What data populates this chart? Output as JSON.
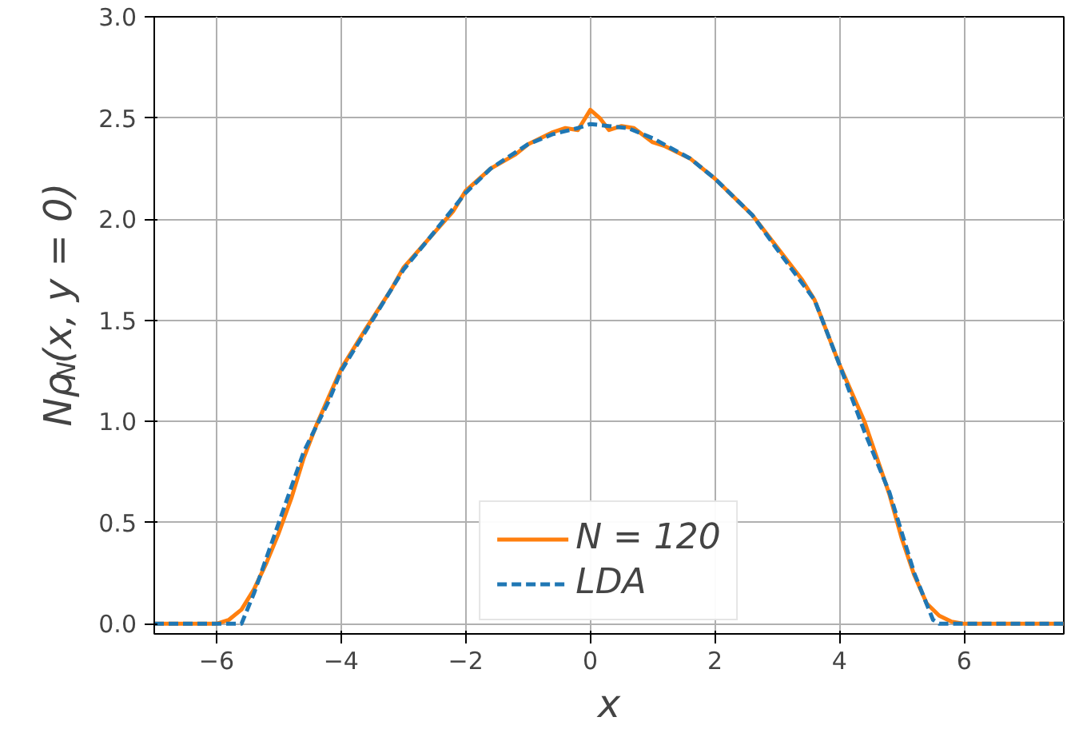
{
  "chart_data": {
    "type": "line",
    "xlabel": "x",
    "ylabel": "Nρ$_{N}$(x, y = 0)",
    "xlim": [
      -7,
      7.6
    ],
    "ylim": [
      -0.05,
      3.0
    ],
    "xticks": [
      {
        "value": -6,
        "label": "−6"
      },
      {
        "value": -4,
        "label": "−4"
      },
      {
        "value": -2,
        "label": "−2"
      },
      0,
      2,
      4,
      6
    ],
    "yticks": [
      {
        "value": 0,
        "label": "0.0"
      },
      0.5,
      {
        "value": 1,
        "label": "1.0"
      },
      1.5,
      {
        "value": 2,
        "label": "2.0"
      },
      2.5,
      {
        "value": 3,
        "label": "3.0"
      }
    ],
    "grid": true,
    "legend": "bottom",
    "series": [
      {
        "name": "N = 120",
        "color": "#ff7f0e",
        "line_style": "solid",
        "x": [
          -7,
          -6,
          -5.8,
          -5.6,
          -5.4,
          -5.2,
          -5,
          -4.8,
          -4.6,
          -4.4,
          -4.2,
          -4,
          -3.6,
          -3.2,
          -3,
          -2.6,
          -2.2,
          -2,
          -1.6,
          -1.2,
          -1,
          -0.6,
          -0.4,
          -0.2,
          0,
          0.15,
          0.3,
          0.5,
          0.7,
          1,
          1.2,
          1.6,
          2,
          2.4,
          2.6,
          3,
          3.4,
          3.6,
          4,
          4.4,
          4.6,
          4.8,
          5,
          5.2,
          5.4,
          5.6,
          5.8,
          6,
          7.6
        ],
        "values": [
          0,
          0,
          0.02,
          0.07,
          0.17,
          0.3,
          0.45,
          0.62,
          0.82,
          0.98,
          1.12,
          1.26,
          1.46,
          1.65,
          1.76,
          1.9,
          2.04,
          2.14,
          2.25,
          2.32,
          2.37,
          2.43,
          2.45,
          2.44,
          2.54,
          2.5,
          2.44,
          2.46,
          2.45,
          2.38,
          2.36,
          2.3,
          2.2,
          2.08,
          2.02,
          1.86,
          1.7,
          1.6,
          1.28,
          1.0,
          0.82,
          0.64,
          0.42,
          0.24,
          0.1,
          0.04,
          0.01,
          0,
          0
        ]
      },
      {
        "name": "LDA",
        "color": "#1f77b4",
        "line_style": "dashed",
        "x": [
          -7,
          -5.6,
          -5.4,
          -5,
          -4.6,
          -4.2,
          -4,
          -3.6,
          -3,
          -2.6,
          -2,
          -1.6,
          -1,
          -0.6,
          -0.2,
          0,
          0.6,
          1,
          1.6,
          2,
          2.6,
          3,
          3.6,
          4,
          4.4,
          4.8,
          5,
          5.2,
          5.5,
          5.6,
          7.6
        ],
        "values": [
          0,
          0,
          0.15,
          0.5,
          0.85,
          1.1,
          1.25,
          1.45,
          1.75,
          1.9,
          2.13,
          2.25,
          2.37,
          2.42,
          2.45,
          2.47,
          2.45,
          2.4,
          2.3,
          2.2,
          2.02,
          1.85,
          1.6,
          1.28,
          0.95,
          0.65,
          0.45,
          0.25,
          0.02,
          0,
          0
        ]
      }
    ]
  }
}
